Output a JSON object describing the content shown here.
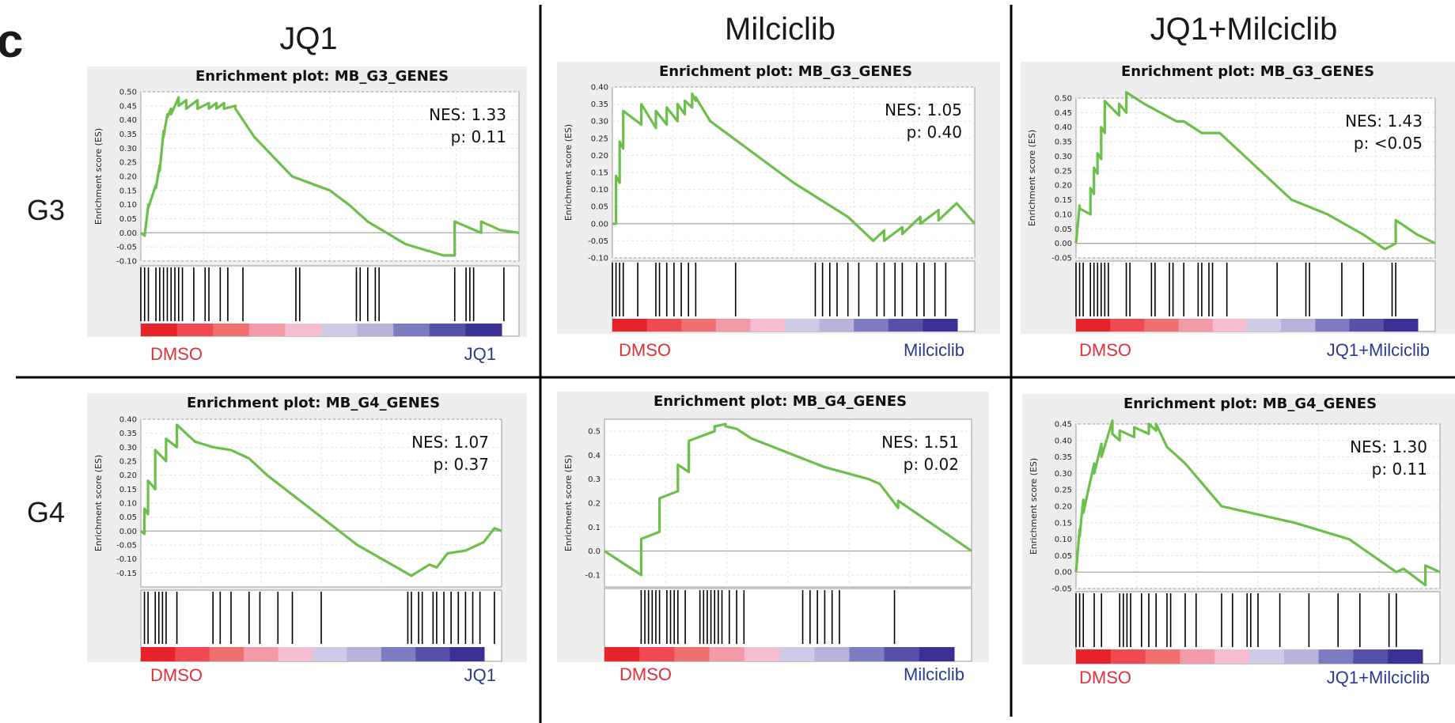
{
  "figure": {
    "panel_letter": "c",
    "columns": [
      "JQ1",
      "Milciclib",
      "JQ1+Milciclib"
    ],
    "rows": [
      "G3",
      "G4"
    ],
    "colors": {
      "curve": "#6cbf4a",
      "left_label": "#e0303a",
      "right_label": "#2b3a8f",
      "panel_bg": "#eeeeee"
    }
  },
  "chart_data": [
    {
      "type": "line",
      "title": "Enrichment plot: MB_G3_GENES",
      "ylabel": "Enrichment score (ES)",
      "ylim": [
        -0.1,
        0.5
      ],
      "yticks": [
        "0.50",
        "0.45",
        "0.40",
        "0.35",
        "0.30",
        "0.25",
        "0.20",
        "0.15",
        "0.10",
        "0.05",
        "0.00",
        "-0.05",
        "-0.10"
      ],
      "nes": "NES: 1.33",
      "p": "p: 0.11",
      "left_label": "DMSO",
      "right_label": "JQ1",
      "x": [
        0,
        0.01,
        0.02,
        0.02,
        0.04,
        0.04,
        0.05,
        0.05,
        0.06,
        0.06,
        0.07,
        0.07,
        0.08,
        0.08,
        0.1,
        0.1,
        0.12,
        0.12,
        0.15,
        0.15,
        0.18,
        0.18,
        0.2,
        0.2,
        0.22,
        0.22,
        0.25,
        0.25,
        0.3,
        0.4,
        0.5,
        0.55,
        0.6,
        0.7,
        0.8,
        0.83,
        0.83,
        0.9,
        0.9,
        0.95,
        0.95,
        1.0
      ],
      "y": [
        0.0,
        -0.01,
        0.1,
        0.09,
        0.17,
        0.16,
        0.24,
        0.22,
        0.36,
        0.34,
        0.42,
        0.41,
        0.44,
        0.42,
        0.48,
        0.45,
        0.47,
        0.44,
        0.47,
        0.44,
        0.46,
        0.44,
        0.46,
        0.44,
        0.46,
        0.44,
        0.45,
        0.44,
        0.34,
        0.2,
        0.15,
        0.1,
        0.04,
        -0.04,
        -0.08,
        -0.08,
        0.04,
        0.0,
        0.04,
        0.01,
        0.01,
        0.0
      ],
      "hits": [
        0.0,
        0.01,
        0.02,
        0.04,
        0.05,
        0.06,
        0.07,
        0.08,
        0.09,
        0.1,
        0.11,
        0.14,
        0.17,
        0.18,
        0.21,
        0.23,
        0.27,
        0.41,
        0.42,
        0.57,
        0.58,
        0.6,
        0.62,
        0.63,
        0.83,
        0.86,
        0.87,
        0.88,
        0.96
      ]
    },
    {
      "type": "line",
      "title": "Enrichment plot: MB_G3_GENES",
      "ylabel": "Enrichment score (ES)",
      "ylim": [
        -0.1,
        0.4
      ],
      "yticks": [
        "0.40",
        "0.35",
        "0.30",
        "0.25",
        "0.20",
        "0.15",
        "0.10",
        "0.05",
        "0.00",
        "-0.05",
        "-0.10"
      ],
      "nes": "NES: 1.05",
      "p": "p: 0.40",
      "left_label": "DMSO",
      "right_label": "Milciclib",
      "x": [
        0,
        0.01,
        0.01,
        0.02,
        0.02,
        0.03,
        0.03,
        0.08,
        0.08,
        0.12,
        0.12,
        0.15,
        0.15,
        0.18,
        0.18,
        0.2,
        0.2,
        0.22,
        0.22,
        0.23,
        0.23,
        0.27,
        0.5,
        0.65,
        0.72,
        0.72,
        0.75,
        0.75,
        0.8,
        0.8,
        0.85,
        0.85,
        0.9,
        0.9,
        0.95,
        1.0
      ],
      "y": [
        0.0,
        0.0,
        0.14,
        0.12,
        0.24,
        0.22,
        0.33,
        0.29,
        0.35,
        0.28,
        0.33,
        0.29,
        0.34,
        0.3,
        0.35,
        0.32,
        0.36,
        0.34,
        0.38,
        0.36,
        0.37,
        0.3,
        0.12,
        0.02,
        -0.05,
        -0.05,
        -0.02,
        -0.05,
        -0.01,
        -0.03,
        0.02,
        0.0,
        0.04,
        0.01,
        0.06,
        0.0
      ],
      "hits": [
        0.0,
        0.01,
        0.02,
        0.03,
        0.07,
        0.12,
        0.13,
        0.15,
        0.17,
        0.19,
        0.21,
        0.23,
        0.34,
        0.56,
        0.58,
        0.6,
        0.62,
        0.65,
        0.68,
        0.73,
        0.75,
        0.78,
        0.8,
        0.84,
        0.86,
        0.89,
        0.92
      ]
    },
    {
      "type": "line",
      "title": "Enrichment plot: MB_G3_GENES",
      "ylabel": "Enrichment score (ES)",
      "ylim": [
        -0.05,
        0.5
      ],
      "yticks": [
        "0.50",
        "0.45",
        "0.40",
        "0.35",
        "0.30",
        "0.25",
        "0.20",
        "0.15",
        "0.10",
        "0.05",
        "0.00",
        "-0.05"
      ],
      "nes": "NES: 1.43",
      "p": "p: <0.05",
      "left_label": "DMSO",
      "right_label": "JQ1+Milciclib",
      "x": [
        0,
        0.01,
        0.01,
        0.04,
        0.04,
        0.05,
        0.05,
        0.06,
        0.06,
        0.07,
        0.07,
        0.08,
        0.08,
        0.12,
        0.12,
        0.14,
        0.14,
        0.19,
        0.28,
        0.3,
        0.35,
        0.4,
        0.6,
        0.7,
        0.8,
        0.86,
        0.89,
        0.89,
        0.95,
        1.0
      ],
      "y": [
        0.0,
        0.13,
        0.12,
        0.1,
        0.19,
        0.17,
        0.26,
        0.24,
        0.31,
        0.29,
        0.4,
        0.38,
        0.49,
        0.44,
        0.48,
        0.45,
        0.52,
        0.48,
        0.42,
        0.42,
        0.38,
        0.38,
        0.15,
        0.1,
        0.03,
        -0.02,
        0.0,
        0.08,
        0.03,
        0.0
      ],
      "hits": [
        0.0,
        0.01,
        0.02,
        0.04,
        0.05,
        0.06,
        0.07,
        0.08,
        0.09,
        0.14,
        0.15,
        0.21,
        0.22,
        0.26,
        0.27,
        0.3,
        0.34,
        0.35,
        0.37,
        0.38,
        0.42,
        0.56,
        0.64,
        0.65,
        0.74,
        0.8,
        0.88,
        0.89
      ]
    },
    {
      "type": "line",
      "title": "Enrichment plot: MB_G4_GENES",
      "ylabel": "Enrichment score (ES)",
      "ylim": [
        -0.2,
        0.4
      ],
      "yticks": [
        "0.40",
        "0.35",
        "0.30",
        "0.25",
        "0.20",
        "0.15",
        "0.10",
        "0.05",
        "0.00",
        "-0.05",
        "-0.10",
        "-0.15"
      ],
      "nes": "NES: 1.07",
      "p": "p: 0.37",
      "left_label": "DMSO",
      "right_label": "JQ1",
      "x": [
        0,
        0.01,
        0.01,
        0.02,
        0.02,
        0.04,
        0.04,
        0.07,
        0.07,
        0.1,
        0.1,
        0.15,
        0.2,
        0.25,
        0.3,
        0.35,
        0.4,
        0.6,
        0.75,
        0.8,
        0.82,
        0.85,
        0.9,
        0.95,
        0.98,
        1.0
      ],
      "y": [
        0.0,
        -0.01,
        0.08,
        0.06,
        0.18,
        0.15,
        0.29,
        0.25,
        0.33,
        0.3,
        0.38,
        0.32,
        0.3,
        0.29,
        0.26,
        0.2,
        0.15,
        -0.05,
        -0.16,
        -0.12,
        -0.13,
        -0.08,
        -0.07,
        -0.04,
        0.01,
        0.0
      ],
      "hits": [
        0.01,
        0.02,
        0.04,
        0.05,
        0.06,
        0.07,
        0.1,
        0.2,
        0.22,
        0.25,
        0.3,
        0.33,
        0.38,
        0.42,
        0.5,
        0.74,
        0.75,
        0.77,
        0.78,
        0.81,
        0.82,
        0.84,
        0.86,
        0.88,
        0.9,
        0.92,
        0.94,
        0.98
      ]
    },
    {
      "type": "line",
      "title": "Enrichment plot: MB_G4_GENES",
      "ylabel": "Enrichment score (ES)",
      "ylim": [
        -0.15,
        0.55
      ],
      "yticks": [
        "0.5",
        "0.4",
        "0.3",
        "0.2",
        "0.1",
        "0.0",
        "-0.1"
      ],
      "nes": "NES: 1.51",
      "p": "p: 0.02",
      "left_label": "DMSO",
      "right_label": "Milciclib",
      "x": [
        0,
        0.1,
        0.1,
        0.15,
        0.15,
        0.2,
        0.2,
        0.23,
        0.23,
        0.3,
        0.3,
        0.33,
        0.33,
        0.36,
        0.38,
        0.4,
        0.6,
        0.72,
        0.75,
        0.8,
        0.8,
        1.0
      ],
      "y": [
        0.0,
        -0.1,
        0.05,
        0.08,
        0.22,
        0.25,
        0.36,
        0.33,
        0.46,
        0.5,
        0.52,
        0.53,
        0.52,
        0.51,
        0.49,
        0.47,
        0.35,
        0.3,
        0.28,
        0.18,
        0.21,
        0.0
      ],
      "hits": [
        0.1,
        0.11,
        0.12,
        0.13,
        0.14,
        0.15,
        0.17,
        0.18,
        0.19,
        0.2,
        0.22,
        0.26,
        0.27,
        0.28,
        0.29,
        0.3,
        0.31,
        0.32,
        0.34,
        0.36,
        0.38,
        0.54,
        0.56,
        0.58,
        0.6,
        0.62,
        0.64,
        0.79
      ]
    },
    {
      "type": "line",
      "title": "Enrichment plot: MB_G4_GENES",
      "ylabel": "Enrichment score (ES)",
      "ylim": [
        -0.05,
        0.45
      ],
      "yticks": [
        "0.45",
        "0.40",
        "0.35",
        "0.30",
        "0.25",
        "0.20",
        "0.15",
        "0.10",
        "0.05",
        "0.00",
        "-0.05"
      ],
      "nes": "NES: 1.30",
      "p": "p: 0.11",
      "left_label": "DMSO",
      "right_label": "JQ1+Milciclib",
      "x": [
        0,
        0.01,
        0.01,
        0.02,
        0.02,
        0.05,
        0.05,
        0.07,
        0.07,
        0.1,
        0.1,
        0.12,
        0.12,
        0.16,
        0.16,
        0.2,
        0.2,
        0.22,
        0.22,
        0.25,
        0.3,
        0.4,
        0.6,
        0.75,
        0.88,
        0.88,
        0.9,
        0.96,
        0.96,
        1.0
      ],
      "y": [
        0.0,
        0.13,
        0.11,
        0.22,
        0.18,
        0.33,
        0.3,
        0.39,
        0.35,
        0.46,
        0.42,
        0.4,
        0.43,
        0.41,
        0.44,
        0.42,
        0.45,
        0.43,
        0.45,
        0.38,
        0.33,
        0.2,
        0.15,
        0.1,
        0.0,
        0.0,
        0.01,
        -0.04,
        0.02,
        0.0
      ],
      "hits": [
        0.0,
        0.01,
        0.02,
        0.05,
        0.07,
        0.12,
        0.13,
        0.14,
        0.15,
        0.18,
        0.2,
        0.22,
        0.25,
        0.26,
        0.3,
        0.33,
        0.4,
        0.43,
        0.47,
        0.48,
        0.5,
        0.56,
        0.64,
        0.72,
        0.78,
        0.86,
        0.88
      ]
    }
  ]
}
